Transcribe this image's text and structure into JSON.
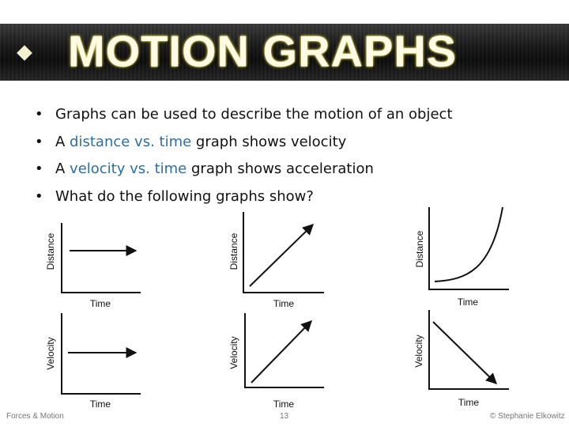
{
  "title": "MOTION GRAPHS",
  "bullets": [
    {
      "prefix": "Graphs can be used to describe the motion of an object",
      "highlight": "",
      "suffix": ""
    },
    {
      "prefix": "A ",
      "highlight": "distance vs. time",
      "suffix": " graph shows velocity"
    },
    {
      "prefix": "A ",
      "highlight": "velocity vs. time",
      "suffix": " graph shows acceleration"
    },
    {
      "prefix": "What do the following graphs show?",
      "highlight": "",
      "suffix": ""
    }
  ],
  "bullet_glyph": "•",
  "graphs": [
    {
      "ylabel": "Distance",
      "xlabel": "Time",
      "shape": "horizontal-arrow"
    },
    {
      "ylabel": "Distance",
      "xlabel": "Time",
      "shape": "rising-line"
    },
    {
      "ylabel": "Distance",
      "xlabel": "Time",
      "shape": "exponential-curve"
    },
    {
      "ylabel": "Velocity",
      "xlabel": "Time",
      "shape": "horizontal-arrow"
    },
    {
      "ylabel": "Velocity",
      "xlabel": "Time",
      "shape": "rising-line"
    },
    {
      "ylabel": "Velocity",
      "xlabel": "Time",
      "shape": "falling-line"
    }
  ],
  "footer": {
    "left": "Forces & Motion",
    "center": "13",
    "right": "© Stephanie Elkowitz"
  },
  "colors": {
    "banner": "#1a1a1a",
    "title": "#fdfbe3",
    "highlight": "#2d6ea5",
    "text": "#111111"
  }
}
